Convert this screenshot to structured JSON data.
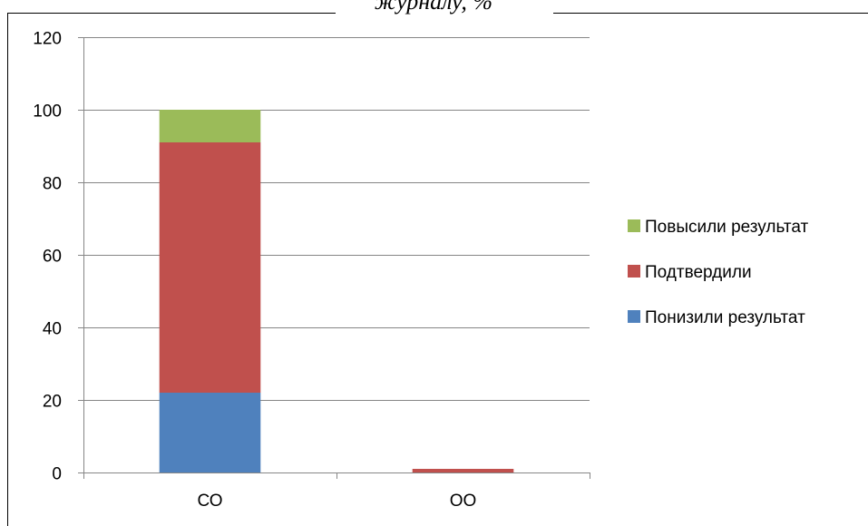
{
  "chart_data": {
    "type": "bar",
    "stacked": true,
    "title": "журналу, %",
    "categories": [
      "СО",
      "ОО"
    ],
    "series": [
      {
        "name": "Понизили результат",
        "values": [
          22,
          0
        ],
        "color": "#4F81BD"
      },
      {
        "name": "Подтвердили",
        "values": [
          69,
          1
        ],
        "color": "#C0504D"
      },
      {
        "name": "Повысили результат",
        "values": [
          9,
          0
        ],
        "color": "#9BBB59"
      }
    ],
    "yticks": [
      0,
      20,
      40,
      60,
      80,
      100,
      120
    ],
    "ylim": [
      0,
      120
    ],
    "grid": true,
    "legend_position": "right"
  }
}
